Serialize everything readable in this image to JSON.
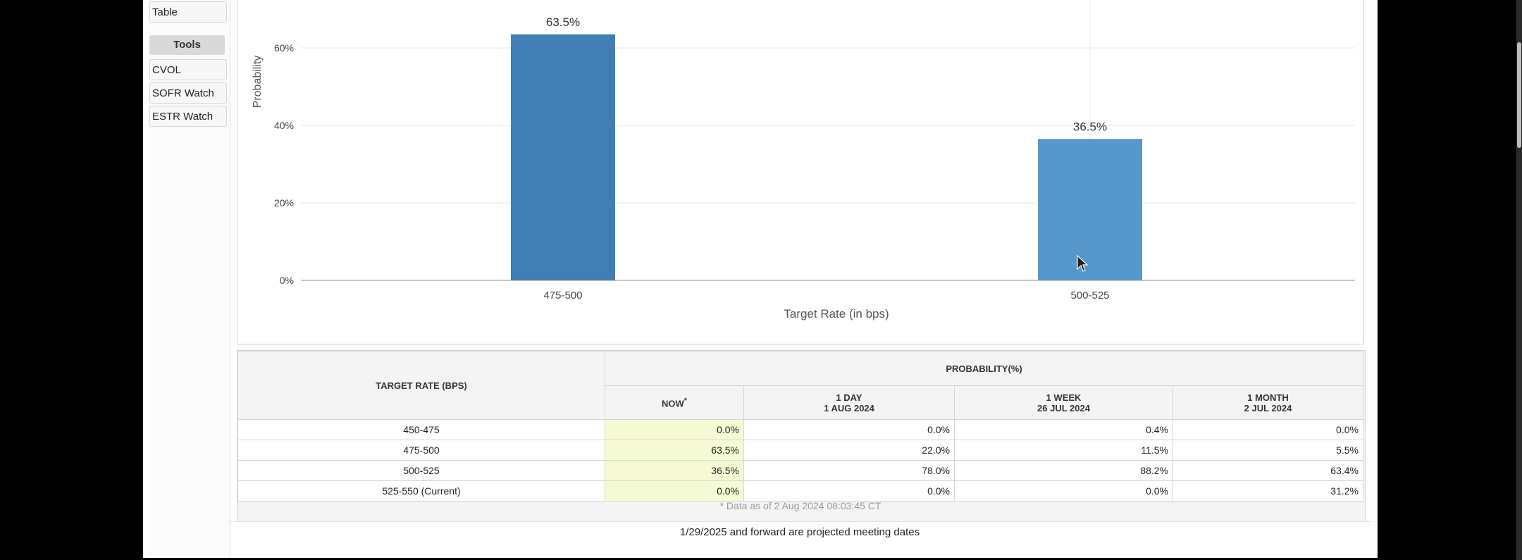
{
  "sidebar": {
    "items": [
      "Table"
    ],
    "tools_heading": "Tools",
    "tools": [
      "CVOL",
      "SOFR Watch",
      "ESTR Watch"
    ]
  },
  "chart_data": {
    "type": "bar",
    "categories": [
      "475-500",
      "500-525"
    ],
    "values": [
      63.5,
      36.5
    ],
    "value_labels": [
      "63.5%",
      "36.5%"
    ],
    "bar_colors": [
      "#3f7fb5",
      "#5698cc"
    ],
    "xlabel": "Target Rate (in bps)",
    "ylabel": "Probability",
    "ylim": [
      0,
      70
    ],
    "yticks": [
      0,
      20,
      40,
      60
    ],
    "ytick_labels": [
      "0%",
      "20%",
      "40%",
      "60%"
    ],
    "grid": true
  },
  "table": {
    "target_header": "TARGET RATE (BPS)",
    "probability_header": "PROBABILITY(%)",
    "columns": [
      {
        "line1": "NOW",
        "line2": "",
        "sup": "*"
      },
      {
        "line1": "1 DAY",
        "line2": "1 AUG 2024"
      },
      {
        "line1": "1 WEEK",
        "line2": "26 JUL 2024"
      },
      {
        "line1": "1 MONTH",
        "line2": "2 JUL 2024"
      }
    ],
    "rows": [
      {
        "rate": "450-475",
        "values": [
          "0.0%",
          "0.0%",
          "0.4%",
          "0.0%"
        ]
      },
      {
        "rate": "475-500",
        "values": [
          "63.5%",
          "22.0%",
          "11.5%",
          "5.5%"
        ]
      },
      {
        "rate": "500-525",
        "values": [
          "36.5%",
          "78.0%",
          "88.2%",
          "63.4%"
        ]
      },
      {
        "rate": "525-550 (Current)",
        "values": [
          "0.0%",
          "0.0%",
          "0.0%",
          "31.2%"
        ]
      }
    ],
    "as_of": "* Data as of 2 Aug 2024 08:03:45 CT"
  },
  "footer_note": "1/29/2025 and forward are projected meeting dates",
  "colors": {
    "now_highlight": "#f6fad4",
    "grid": "#e6e6e6"
  }
}
